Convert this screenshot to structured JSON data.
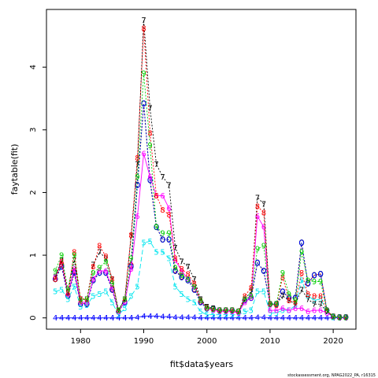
{
  "chart_data": {
    "type": "line",
    "title": "",
    "xlabel": "fit$data$years",
    "ylabel": "faytable(fit)",
    "xlim": [
      1974.6,
      2023.6
    ],
    "ylim": [
      -0.18,
      4.92
    ],
    "xticks": [
      1980,
      1990,
      2000,
      2010,
      2020
    ],
    "yticks": [
      0,
      1,
      2,
      3,
      4
    ],
    "grid": false,
    "legend": "none",
    "x": [
      1976,
      1977,
      1978,
      1979,
      1980,
      1981,
      1982,
      1983,
      1984,
      1985,
      1986,
      1987,
      1988,
      1989,
      1990,
      1991,
      1992,
      1993,
      1994,
      1995,
      1996,
      1997,
      1998,
      1999,
      2000,
      2001,
      2002,
      2003,
      2004,
      2005,
      2006,
      2007,
      2008,
      2009,
      2010,
      2011,
      2012,
      2013,
      2014,
      2015,
      2016,
      2017,
      2018,
      2019,
      2020,
      2021,
      2022
    ],
    "series": [
      {
        "name": "0",
        "line_color": "#000000",
        "marker_color": "#000000",
        "dash": "2,2",
        "marker": "circle",
        "values": [
          0.62,
          0.82,
          0.35,
          0.72,
          0.22,
          0.22,
          0.6,
          0.72,
          0.72,
          0.45,
          0.1,
          0.25,
          0.82,
          2.12,
          3.42,
          2.2,
          1.45,
          1.25,
          1.25,
          0.75,
          0.65,
          0.6,
          0.45,
          0.25,
          0.15,
          0.15,
          0.12,
          0.12,
          0.12,
          0.1,
          0.28,
          0.32,
          0.88,
          0.75,
          0.22,
          0.22,
          0.42,
          0.32,
          0.32,
          1.2,
          0.55,
          0.68,
          0.7,
          0.12,
          0.02,
          0.01,
          0.01
        ]
      },
      {
        "name": "1",
        "line_color": "#ff0000",
        "marker_color": "#ff0000",
        "dash": "2,2",
        "marker": "circle",
        "values": [
          0.62,
          0.85,
          0.36,
          0.74,
          0.23,
          0.23,
          0.6,
          0.72,
          0.72,
          0.46,
          0.1,
          0.26,
          0.84,
          2.12,
          3.42,
          2.2,
          1.45,
          1.25,
          1.25,
          0.76,
          0.66,
          0.6,
          0.46,
          0.26,
          0.16,
          0.15,
          0.12,
          0.12,
          0.12,
          0.1,
          0.28,
          0.32,
          0.88,
          0.75,
          0.22,
          0.22,
          0.42,
          0.32,
          0.32,
          1.2,
          0.56,
          0.68,
          0.7,
          0.12,
          0.02,
          0.01,
          0.01
        ]
      },
      {
        "name": "2",
        "line_color": "#00cd00",
        "marker_color": "#00cd00",
        "dash": "2,2",
        "marker": "circle",
        "values": [
          0.62,
          0.82,
          0.35,
          0.72,
          0.22,
          0.22,
          0.6,
          0.72,
          0.72,
          0.45,
          0.1,
          0.25,
          0.82,
          2.12,
          3.42,
          2.2,
          1.45,
          1.25,
          1.25,
          0.75,
          0.65,
          0.6,
          0.45,
          0.25,
          0.15,
          0.15,
          0.12,
          0.12,
          0.12,
          0.1,
          0.28,
          0.32,
          0.88,
          0.75,
          0.22,
          0.22,
          0.42,
          0.32,
          0.32,
          1.2,
          0.55,
          0.68,
          0.7,
          0.12,
          0.02,
          0.01,
          0.01
        ]
      },
      {
        "name": "3",
        "line_color": "#0000ff",
        "marker_color": "#0000ff",
        "dash": "2,2",
        "marker": "circle",
        "values": [
          0.62,
          0.82,
          0.35,
          0.72,
          0.22,
          0.22,
          0.6,
          0.72,
          0.72,
          0.45,
          0.1,
          0.25,
          0.82,
          2.12,
          3.42,
          2.2,
          1.45,
          1.25,
          1.25,
          0.75,
          0.65,
          0.6,
          0.45,
          0.25,
          0.15,
          0.15,
          0.12,
          0.12,
          0.12,
          0.1,
          0.28,
          0.32,
          0.88,
          0.75,
          0.22,
          0.22,
          0.42,
          0.32,
          0.32,
          1.2,
          0.55,
          0.68,
          0.7,
          0.12,
          0.02,
          0.01,
          0.01
        ]
      },
      {
        "name": "4",
        "line_color": "#0000ff",
        "marker_color": "#0000ff",
        "dash": "",
        "marker": "label",
        "values": [
          0,
          0,
          0,
          0,
          0,
          0,
          0,
          0,
          0,
          0,
          0,
          0,
          0,
          0.01,
          0.03,
          0.03,
          0.03,
          0.02,
          0.02,
          0.01,
          0.01,
          0.01,
          0.01,
          0,
          0,
          0,
          0,
          0,
          0,
          0,
          0,
          0,
          0.01,
          0.01,
          0,
          0,
          0,
          0,
          0,
          0,
          0,
          0,
          0,
          0,
          0,
          0,
          0
        ]
      },
      {
        "name": "5",
        "line_color": "#00e5ee",
        "marker_color": "#00e5ee",
        "dash": "6,3",
        "marker": "label",
        "values": [
          0.42,
          0.45,
          0.3,
          0.5,
          0.18,
          0.2,
          0.35,
          0.38,
          0.42,
          0.25,
          0.05,
          0.15,
          0.35,
          0.5,
          1.2,
          1.22,
          1.05,
          1.05,
          0.95,
          0.5,
          0.38,
          0.3,
          0.25,
          0.1,
          0.05,
          0.05,
          0.05,
          0.05,
          0.05,
          0.05,
          0.1,
          0.12,
          0.42,
          0.42,
          0.08,
          0.08,
          0.12,
          0.12,
          0.2,
          0.6,
          0.35,
          0.28,
          0.3,
          0.1,
          0.01,
          0.01,
          0.01
        ]
      },
      {
        "name": "6",
        "line_color": "#ff00ff",
        "marker_color": "#ff00ff",
        "dash": "",
        "marker": "label",
        "values": [
          0.65,
          0.9,
          0.38,
          0.78,
          0.25,
          0.25,
          0.62,
          0.75,
          0.75,
          0.48,
          0.1,
          0.26,
          0.78,
          1.62,
          2.62,
          2.25,
          1.95,
          1.95,
          1.75,
          0.92,
          0.75,
          0.62,
          0.5,
          0.28,
          0.15,
          0.12,
          0.1,
          0.1,
          0.1,
          0.08,
          0.25,
          0.32,
          1.62,
          1.45,
          0.12,
          0.12,
          0.15,
          0.12,
          0.15,
          0.15,
          0.1,
          0.12,
          0.12,
          0.08,
          0.02,
          0.01,
          0.01
        ]
      },
      {
        "name": "7",
        "line_color": "#000000",
        "marker_color": "#000000",
        "dash": "2,2",
        "marker": "label",
        "values": [
          0.65,
          0.92,
          0.4,
          0.92,
          0.3,
          0.3,
          0.85,
          1.05,
          0.95,
          0.62,
          0.12,
          0.3,
          1.3,
          2.45,
          4.75,
          3.35,
          2.45,
          2.25,
          2.12,
          1.12,
          0.9,
          0.82,
          0.62,
          0.3,
          0.18,
          0.15,
          0.12,
          0.12,
          0.12,
          0.1,
          0.3,
          0.42,
          1.92,
          1.82,
          0.22,
          0.22,
          0.35,
          0.28,
          0.22,
          0.45,
          0.3,
          0.22,
          0.22,
          0.1,
          0.02,
          0.01,
          0.01
        ]
      },
      {
        "name": "8",
        "line_color": "#ff0000",
        "marker_color": "#ff0000",
        "dash": "2,2",
        "marker": "label",
        "values": [
          0.62,
          0.9,
          0.4,
          1.05,
          0.3,
          0.3,
          0.82,
          1.15,
          0.98,
          0.62,
          0.12,
          0.3,
          1.32,
          2.55,
          4.62,
          2.95,
          1.95,
          1.72,
          1.65,
          0.95,
          0.78,
          0.7,
          0.55,
          0.28,
          0.16,
          0.14,
          0.12,
          0.12,
          0.12,
          0.1,
          0.35,
          0.48,
          1.78,
          1.68,
          0.22,
          0.2,
          0.65,
          0.28,
          0.25,
          0.72,
          0.38,
          0.35,
          0.35,
          0.12,
          0.02,
          0.01,
          0.01
        ]
      },
      {
        "name": "9",
        "line_color": "#00cd00",
        "marker_color": "#00cd00",
        "dash": "2,2",
        "marker": "label",
        "values": [
          0.75,
          1.0,
          0.45,
          1.0,
          0.28,
          0.3,
          0.72,
          0.8,
          0.9,
          0.55,
          0.12,
          0.3,
          0.95,
          2.25,
          3.9,
          2.75,
          1.45,
          1.35,
          1.35,
          0.8,
          0.68,
          0.62,
          0.5,
          0.28,
          0.16,
          0.14,
          0.12,
          0.12,
          0.12,
          0.1,
          0.3,
          0.35,
          1.1,
          1.15,
          0.22,
          0.22,
          0.72,
          0.38,
          0.28,
          1.05,
          0.6,
          0.58,
          0.58,
          0.12,
          0.02,
          0.01,
          0.01
        ]
      }
    ]
  },
  "footnote": "stockassessment.org, NPAG2022_PA, r16315"
}
